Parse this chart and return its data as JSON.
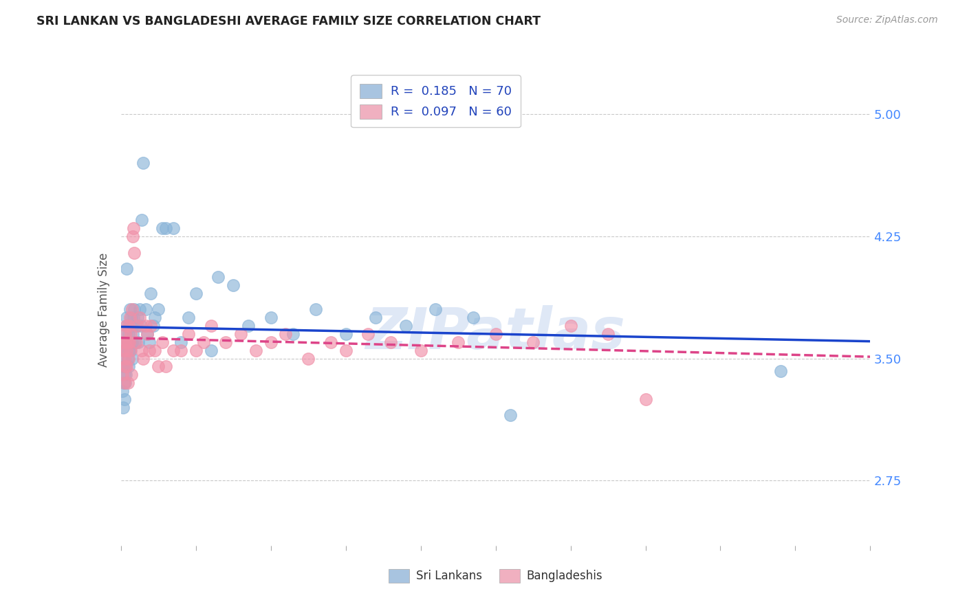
{
  "title": "SRI LANKAN VS BANGLADESHI AVERAGE FAMILY SIZE CORRELATION CHART",
  "source": "Source: ZipAtlas.com",
  "ylabel": "Average Family Size",
  "legend_entries": [
    {
      "label": "R =  0.185   N = 70",
      "color": "#a8c4e0"
    },
    {
      "label": "R =  0.097   N = 60",
      "color": "#f0b0c0"
    }
  ],
  "legend_label_bottom": [
    "Sri Lankans",
    "Bangladeshis"
  ],
  "sri_lankan_color": "#8ab4d8",
  "bangladeshi_color": "#f090a8",
  "sri_lankan_line_color": "#1a44cc",
  "bangladeshi_line_color": "#dd4488",
  "yticks": [
    2.75,
    3.5,
    4.25,
    5.0
  ],
  "ylim": [
    2.35,
    5.25
  ],
  "xlim": [
    0.0,
    1.0
  ],
  "background_color": "#ffffff",
  "grid_color": "#bbbbbb",
  "title_color": "#222222",
  "right_tick_color": "#4488ff",
  "watermark": "ZIPatlas",
  "sri_lankans_x": [
    0.002,
    0.003,
    0.003,
    0.004,
    0.004,
    0.005,
    0.005,
    0.005,
    0.006,
    0.006,
    0.006,
    0.007,
    0.007,
    0.007,
    0.008,
    0.008,
    0.008,
    0.009,
    0.009,
    0.01,
    0.01,
    0.01,
    0.011,
    0.011,
    0.012,
    0.012,
    0.013,
    0.013,
    0.014,
    0.015,
    0.015,
    0.016,
    0.016,
    0.017,
    0.018,
    0.019,
    0.02,
    0.022,
    0.023,
    0.025,
    0.027,
    0.028,
    0.03,
    0.033,
    0.035,
    0.038,
    0.04,
    0.043,
    0.045,
    0.05,
    0.055,
    0.06,
    0.07,
    0.08,
    0.09,
    0.1,
    0.12,
    0.13,
    0.15,
    0.17,
    0.2,
    0.23,
    0.26,
    0.3,
    0.34,
    0.38,
    0.42,
    0.47,
    0.52,
    0.88
  ],
  "sri_lankans_y": [
    3.3,
    3.45,
    3.2,
    3.5,
    3.35,
    3.55,
    3.4,
    3.25,
    3.6,
    3.45,
    3.35,
    3.55,
    3.4,
    3.65,
    4.05,
    3.75,
    3.7,
    3.6,
    3.5,
    3.55,
    3.45,
    3.65,
    3.7,
    3.55,
    3.8,
    3.6,
    3.7,
    3.55,
    3.75,
    3.6,
    3.5,
    3.65,
    3.7,
    3.75,
    3.8,
    3.6,
    3.7,
    3.75,
    3.6,
    3.8,
    3.7,
    4.35,
    4.7,
    3.8,
    3.65,
    3.6,
    3.9,
    3.7,
    3.75,
    3.8,
    4.3,
    4.3,
    4.3,
    3.6,
    3.75,
    3.9,
    3.55,
    4.0,
    3.95,
    3.7,
    3.75,
    3.65,
    3.8,
    3.65,
    3.75,
    3.7,
    3.8,
    3.75,
    3.15,
    3.42
  ],
  "bangladeshis_x": [
    0.002,
    0.003,
    0.004,
    0.005,
    0.005,
    0.006,
    0.006,
    0.007,
    0.007,
    0.008,
    0.008,
    0.009,
    0.009,
    0.01,
    0.01,
    0.011,
    0.012,
    0.012,
    0.013,
    0.014,
    0.015,
    0.016,
    0.017,
    0.018,
    0.02,
    0.022,
    0.025,
    0.028,
    0.03,
    0.033,
    0.035,
    0.038,
    0.04,
    0.045,
    0.05,
    0.055,
    0.06,
    0.07,
    0.08,
    0.09,
    0.1,
    0.11,
    0.12,
    0.14,
    0.16,
    0.18,
    0.2,
    0.22,
    0.25,
    0.28,
    0.3,
    0.33,
    0.36,
    0.4,
    0.45,
    0.5,
    0.55,
    0.6,
    0.65,
    0.7
  ],
  "bangladeshis_y": [
    3.4,
    3.55,
    3.6,
    3.5,
    3.35,
    3.65,
    3.45,
    3.6,
    3.7,
    3.45,
    3.55,
    3.6,
    3.35,
    3.7,
    3.5,
    3.6,
    3.75,
    3.55,
    3.65,
    3.4,
    3.8,
    4.25,
    4.3,
    4.15,
    3.6,
    3.7,
    3.75,
    3.55,
    3.5,
    3.7,
    3.65,
    3.55,
    3.7,
    3.55,
    3.45,
    3.6,
    3.45,
    3.55,
    3.55,
    3.65,
    3.55,
    3.6,
    3.7,
    3.6,
    3.65,
    3.55,
    3.6,
    3.65,
    3.5,
    3.6,
    3.55,
    3.65,
    3.6,
    3.55,
    3.6,
    3.65,
    3.6,
    3.7,
    3.65,
    3.25
  ]
}
